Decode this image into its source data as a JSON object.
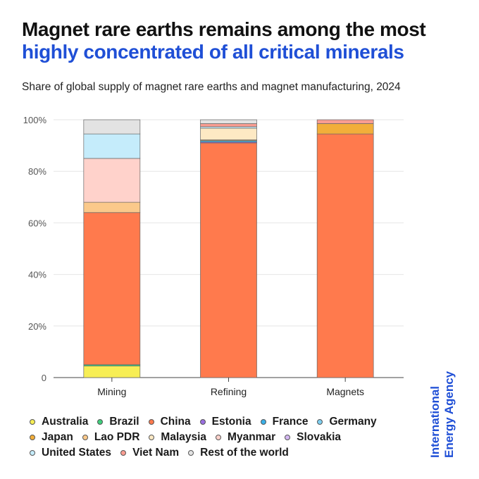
{
  "title": {
    "line1": "Magnet rare earths remains among the most",
    "line2": "highly concentrated of all critical minerals"
  },
  "subtitle": "Share of global supply of magnet rare earths and magnet manufacturing, 2024",
  "brand": {
    "line1": "International",
    "line2": "Energy Agency"
  },
  "chart_data": {
    "type": "bar",
    "stacked": true,
    "title": "Share of global supply of magnet rare earths and magnet manufacturing, 2024",
    "categories": [
      "Mining",
      "Refining",
      "Magnets"
    ],
    "ylim": [
      0,
      100
    ],
    "yticks": [
      0,
      20,
      40,
      60,
      80,
      100
    ],
    "ytick_labels": [
      "0",
      "20%",
      "40%",
      "60%",
      "80%",
      "100%"
    ],
    "grid": true,
    "legend_position": "bottom",
    "series": [
      {
        "name": "Australia",
        "color": "#f7ee55",
        "values": [
          4.5,
          0,
          0
        ]
      },
      {
        "name": "Brazil",
        "color": "#3fcf7c",
        "values": [
          0.5,
          0,
          0
        ]
      },
      {
        "name": "China",
        "color": "#ff7a4d",
        "values": [
          59,
          91,
          94.5
        ]
      },
      {
        "name": "Estonia",
        "color": "#9a6fe0",
        "values": [
          0,
          0.4,
          0
        ]
      },
      {
        "name": "France",
        "color": "#3ab0e8",
        "values": [
          0,
          0.5,
          0
        ]
      },
      {
        "name": "Germany",
        "color": "#7fd0f2",
        "values": [
          0,
          0,
          0
        ]
      },
      {
        "name": "Japan",
        "color": "#f2ae3a",
        "values": [
          0,
          0.3,
          4
        ]
      },
      {
        "name": "Lao PDR",
        "color": "#fbc98a",
        "values": [
          4,
          0,
          0
        ]
      },
      {
        "name": "Malaysia",
        "color": "#fde9c4",
        "values": [
          0,
          4.5,
          0
        ]
      },
      {
        "name": "Myanmar",
        "color": "#ffd2cb",
        "values": [
          17,
          0,
          0
        ]
      },
      {
        "name": "Slovakia",
        "color": "#d4b7f2",
        "values": [
          0,
          0,
          0
        ]
      },
      {
        "name": "United States",
        "color": "#c5ecfb",
        "values": [
          9.5,
          0.6,
          0
        ]
      },
      {
        "name": "Viet Nam",
        "color": "#f99d92",
        "values": [
          0,
          1.2,
          1.5
        ]
      },
      {
        "name": "Rest of the world",
        "color": "#e3e3e3",
        "values": [
          5.5,
          1.5,
          0
        ]
      }
    ]
  },
  "legend": {
    "rows": [
      [
        "Australia",
        "Brazil",
        "China",
        "Estonia",
        "France",
        "Germany"
      ],
      [
        "Japan",
        "Lao PDR",
        "Malaysia",
        "Myanmar",
        "Slovakia"
      ],
      [
        "United States",
        "Viet Nam",
        "Rest of the world"
      ]
    ]
  }
}
